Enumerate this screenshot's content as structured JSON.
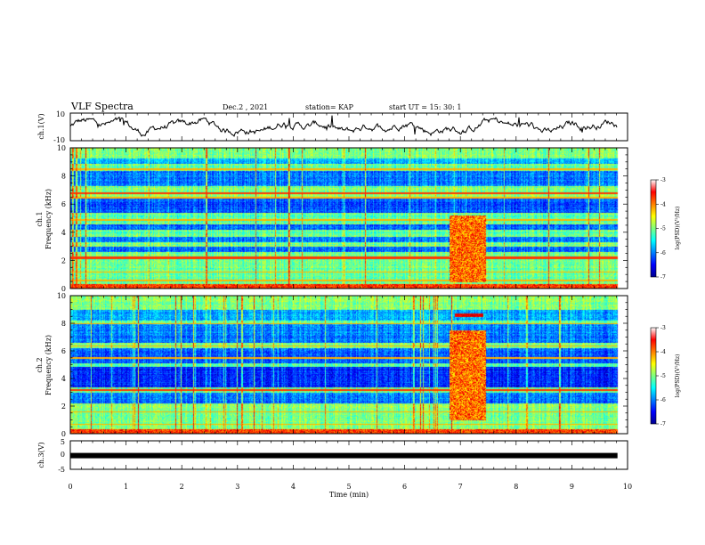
{
  "header": {
    "title": "VLF Spectra",
    "date": "Dec.2 , 2021",
    "station": "station= KAP",
    "start_ut": "start UT =  15: 30: 1"
  },
  "chart_data": [
    {
      "id": "ch1-waveform",
      "type": "line",
      "ylabel": "ch.1(V)",
      "ylim": [
        -10,
        10
      ],
      "yticks": [
        "10",
        "-10"
      ],
      "xlim": [
        0,
        10
      ]
    },
    {
      "id": "ch1-spectrogram",
      "type": "heatmap",
      "ylabel_line1": "ch.1",
      "ylabel_line2": "Frequency (kHz)",
      "ylim": [
        0,
        10
      ],
      "yticks": [
        "0",
        "2",
        "4",
        "6",
        "8",
        "10"
      ],
      "xlim": [
        0,
        10
      ],
      "colorbar": {
        "label": "log(PSD)(V²/Hz)",
        "range": [
          -7,
          -3
        ],
        "ticks": [
          "-3",
          "-4",
          "-5",
          "-6",
          "-7"
        ]
      },
      "features": [
        {
          "type": "broadband-burst",
          "t_start_min": 6.8,
          "t_end_min": 7.45,
          "f_low_khz": 0.5,
          "f_high_khz": 5.2
        },
        {
          "type": "persistent-line",
          "f_khz": 2.2
        },
        {
          "type": "persistent-line",
          "f_khz": 6.8
        }
      ]
    },
    {
      "id": "ch2-spectrogram",
      "type": "heatmap",
      "ylabel_line1": "ch.2",
      "ylabel_line2": "Frequency (kHz)",
      "ylim": [
        0,
        10
      ],
      "yticks": [
        "0",
        "2",
        "4",
        "6",
        "8",
        "10"
      ],
      "xlim": [
        0,
        10
      ],
      "colorbar": {
        "label": "log(PSD)(V²/Hz)",
        "range": [
          -7,
          -3
        ],
        "ticks": [
          "-3",
          "-4",
          "-5",
          "-6",
          "-7"
        ]
      },
      "features": [
        {
          "type": "broadband-burst",
          "t_start_min": 6.8,
          "t_end_min": 7.45,
          "f_low_khz": 1.0,
          "f_high_khz": 7.5
        },
        {
          "type": "narrow-line",
          "t_start_min": 6.9,
          "t_end_min": 7.4,
          "f_khz": 8.6
        },
        {
          "type": "persistent-line",
          "f_khz": 3.2
        }
      ]
    },
    {
      "id": "ch3-waveform",
      "type": "line",
      "ylabel": "ch.3(V)",
      "ylim": [
        -5,
        5
      ],
      "yticks": [
        "5",
        "0",
        "-5"
      ],
      "xlim": [
        0,
        10
      ],
      "level_v": -0.2
    }
  ],
  "xaxis": {
    "label": "Time (min)",
    "ticks": [
      "0",
      "1",
      "2",
      "3",
      "4",
      "5",
      "6",
      "7",
      "8",
      "9",
      "10"
    ]
  }
}
